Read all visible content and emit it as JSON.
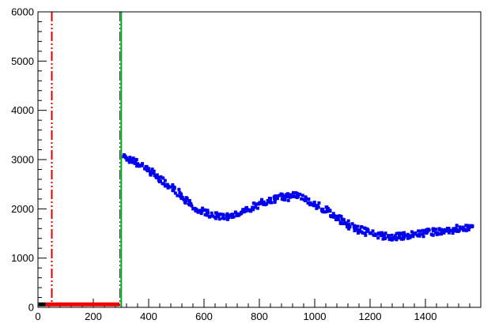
{
  "page": {
    "background": "#ffffff"
  },
  "chart_data": {
    "type": "scatter",
    "title": "",
    "xlabel": "",
    "ylabel": "",
    "xlim": [
      0,
      1600
    ],
    "ylim": [
      0,
      6000
    ],
    "grid": false,
    "legend": "none",
    "axis_color": "#000000",
    "x_major_ticks": [
      0,
      200,
      400,
      600,
      800,
      1000,
      1200,
      1400
    ],
    "x_minor_step": 40,
    "y_major_ticks": [
      0,
      1000,
      2000,
      3000,
      4000,
      5000,
      6000
    ],
    "y_minor_step": 200,
    "series": [
      {
        "name": "baseline-black",
        "type": "line",
        "color": "#000000",
        "linewidth": 5,
        "x": [
          2,
          28
        ],
        "y": [
          60,
          60
        ]
      },
      {
        "name": "baseline-red",
        "type": "line",
        "color": "#ee0000",
        "linewidth": 5,
        "x": [
          28,
          295
        ],
        "y": [
          60,
          60
        ]
      },
      {
        "name": "signal-band-blue",
        "type": "scatter-band",
        "color": "#0000ee",
        "marker": "square",
        "marker_size": 4,
        "band_halfwidth": 70,
        "x": [
          310,
          330,
          350,
          370,
          390,
          410,
          430,
          450,
          470,
          490,
          510,
          530,
          550,
          570,
          590,
          610,
          630,
          650,
          670,
          690,
          710,
          730,
          750,
          770,
          790,
          810,
          830,
          850,
          870,
          890,
          910,
          930,
          950,
          970,
          990,
          1010,
          1030,
          1050,
          1070,
          1090,
          1110,
          1130,
          1150,
          1170,
          1190,
          1210,
          1230,
          1250,
          1270,
          1290,
          1310,
          1330,
          1350,
          1370,
          1390,
          1410,
          1430,
          1450,
          1470,
          1490,
          1510,
          1530,
          1550,
          1570
        ],
        "y": [
          3060,
          3010,
          2960,
          2900,
          2820,
          2740,
          2660,
          2580,
          2490,
          2400,
          2300,
          2200,
          2110,
          2030,
          1960,
          1910,
          1870,
          1850,
          1840,
          1850,
          1870,
          1900,
          1950,
          2010,
          2070,
          2120,
          2170,
          2200,
          2230,
          2240,
          2230,
          2280,
          2230,
          2180,
          2130,
          2070,
          2000,
          1930,
          1860,
          1790,
          1720,
          1660,
          1610,
          1560,
          1520,
          1490,
          1460,
          1450,
          1440,
          1430,
          1440,
          1450,
          1460,
          1480,
          1500,
          1520,
          1540,
          1550,
          1560,
          1570,
          1590,
          1610,
          1630,
          1650
        ]
      }
    ],
    "annotations": [
      {
        "name": "cut-line-red",
        "type": "vline",
        "x": 50,
        "color": "#dd0000",
        "style": "dash-dot-dot",
        "width": 2
      },
      {
        "name": "cut-line-black",
        "type": "vline",
        "x": 296,
        "color": "#222222",
        "style": "dash-dot-dot",
        "width": 1
      },
      {
        "name": "cut-line-green",
        "type": "vline",
        "x": 301,
        "color": "#00aa22",
        "style": "solid",
        "width": 2
      }
    ]
  }
}
